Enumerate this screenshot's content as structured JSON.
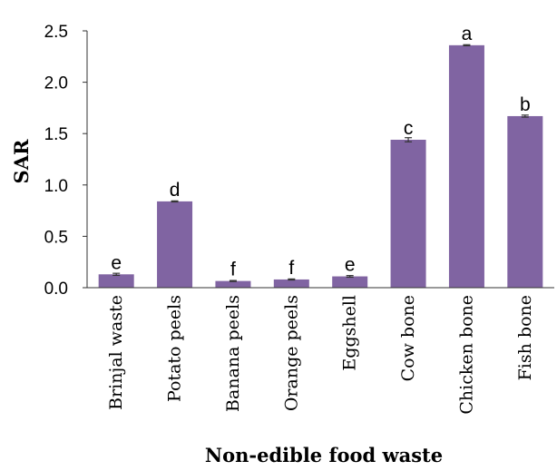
{
  "chart_data": {
    "type": "bar",
    "categories": [
      "Brinjal waste",
      "Potato peels",
      "Banana peels",
      "Orange peels",
      "Eggshell",
      "Cow bone",
      "Chicken bone",
      "Fish bone"
    ],
    "values": [
      0.13,
      0.84,
      0.065,
      0.08,
      0.11,
      1.44,
      2.36,
      1.67
    ],
    "errors": [
      0.01,
      0.005,
      0.005,
      0.005,
      0.008,
      0.02,
      0.005,
      0.01
    ],
    "significance_letters": [
      "e",
      "d",
      "f",
      "f",
      "e",
      "c",
      "a",
      "b"
    ],
    "xlabel": "Non-edible food waste",
    "ylabel": "SAR",
    "ylim": [
      0.0,
      2.5
    ],
    "yticks": [
      "0.0",
      "0.5",
      "1.0",
      "1.5",
      "2.0",
      "2.5"
    ],
    "bar_color": "#8064a2",
    "grid": false,
    "legend": "none"
  }
}
